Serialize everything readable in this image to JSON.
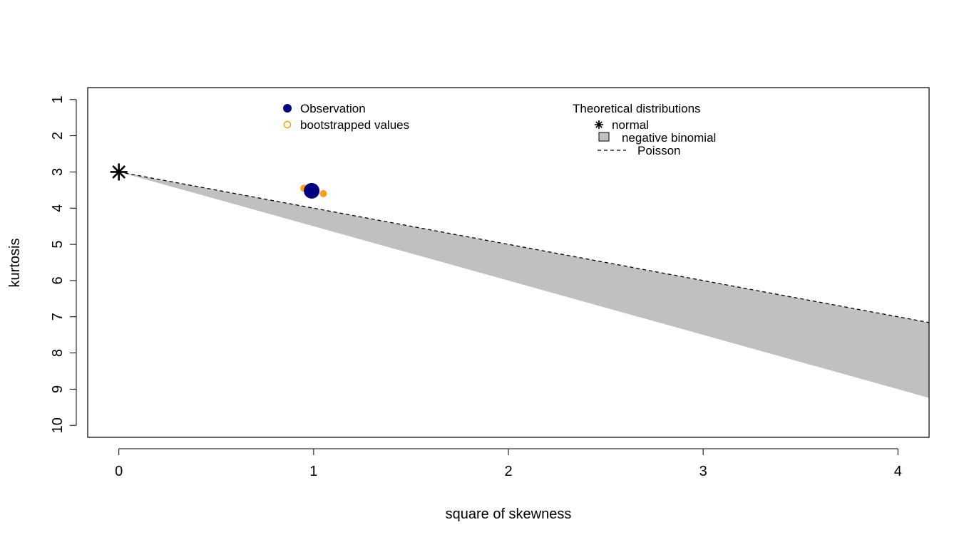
{
  "chart_data": {
    "type": "scatter",
    "title": "",
    "xlabel": "square of skewness",
    "ylabel": "kurtosis",
    "xlim": [
      -0.16,
      4.16
    ],
    "ylim": [
      10.33,
      0.67
    ],
    "y_axis_reversed": true,
    "x_ticks": [
      0,
      1,
      2,
      3,
      4
    ],
    "x_tick_labels": [
      "0",
      "1",
      "2",
      "3",
      "4"
    ],
    "y_ticks": [
      1,
      2,
      3,
      4,
      5,
      6,
      7,
      8,
      9,
      10
    ],
    "y_tick_labels": [
      "1",
      "2",
      "3",
      "4",
      "5",
      "6",
      "7",
      "8",
      "9",
      "10"
    ],
    "grid": false,
    "series": [
      {
        "name": "normal",
        "kind": "point",
        "marker": "asterisk",
        "color": "#000000",
        "points": [
          {
            "x": 0,
            "y": 3
          }
        ]
      },
      {
        "name": "negative binomial",
        "kind": "region",
        "color": "#c0c0c0",
        "upper": [
          {
            "x": 0,
            "y": 3
          },
          {
            "x": 4.16,
            "y": 7.16
          }
        ],
        "lower": [
          {
            "x": 0,
            "y": 3
          },
          {
            "x": 4.16,
            "y": 9.24
          }
        ]
      },
      {
        "name": "Poisson",
        "kind": "line",
        "style": "dashed",
        "color": "#000000",
        "points": [
          {
            "x": 0,
            "y": 3
          },
          {
            "x": 4.16,
            "y": 7.16
          }
        ]
      },
      {
        "name": "bootstrapped values",
        "kind": "point",
        "marker": "circle-open",
        "color": "#ff9f1c",
        "points": [
          {
            "x": 0.95,
            "y": 3.45
          },
          {
            "x": 1.05,
            "y": 3.6
          }
        ]
      },
      {
        "name": "Observation",
        "kind": "point",
        "marker": "circle-filled",
        "color": "#000080",
        "points": [
          {
            "x": 0.99,
            "y": 3.52
          }
        ]
      }
    ],
    "legends": [
      {
        "placement": "top-center",
        "title": "",
        "entries": [
          {
            "label": "Observation",
            "symbol": "circle-filled",
            "color": "#000080"
          },
          {
            "label": "bootstrapped values",
            "symbol": "circle-open",
            "color": "#ff9f1c"
          }
        ]
      },
      {
        "placement": "top-right",
        "title": "Theoretical distributions",
        "entries": [
          {
            "label": "normal",
            "symbol": "asterisk",
            "color": "#000000"
          },
          {
            "label": "negative binomial",
            "symbol": "box",
            "color": "#c0c0c0"
          },
          {
            "label": "Poisson",
            "symbol": "dashed-line",
            "color": "#000000"
          }
        ]
      }
    ]
  }
}
